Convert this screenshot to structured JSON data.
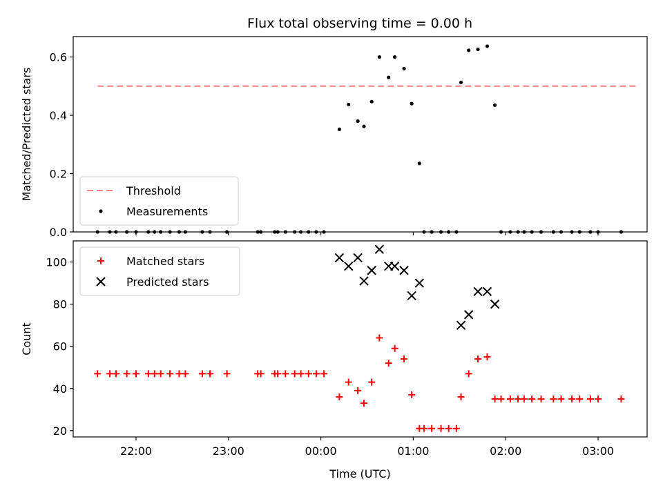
{
  "chart_data": [
    {
      "type": "scatter",
      "title": "Flux total observing time = 0.00 h",
      "xlabel": "",
      "ylabel": "Matched/Predicted stars",
      "ylim": [
        0,
        0.67
      ],
      "yticks": [
        "0.0",
        "0.2",
        "0.4",
        "0.6"
      ],
      "legend_position": "lower-left",
      "series": [
        {
          "name": "Threshold",
          "style": "dashed-line",
          "color": "#ff7f7f",
          "x": [
            "21:35",
            "03:25"
          ],
          "y": [
            0.5,
            0.5
          ]
        },
        {
          "name": "Measurements",
          "style": "dot",
          "color": "#000000",
          "x": [
            "21:35",
            "21:43",
            "21:47",
            "21:54",
            "22:00",
            "22:08",
            "22:12",
            "22:16",
            "22:22",
            "22:28",
            "22:32",
            "22:43",
            "22:48",
            "22:59",
            "23:19",
            "23:21",
            "23:30",
            "23:32",
            "23:37",
            "23:43",
            "23:47",
            "23:52",
            "23:57",
            "00:02",
            "00:12",
            "00:18",
            "00:24",
            "00:28",
            "00:33",
            "00:38",
            "00:44",
            "00:48",
            "00:54",
            "00:59",
            "01:04",
            "01:07",
            "01:12",
            "01:18",
            "01:23",
            "01:28",
            "01:31",
            "01:36",
            "01:42",
            "01:48",
            "01:53",
            "01:57",
            "02:03",
            "02:08",
            "02:12",
            "02:17",
            "02:23",
            "02:31",
            "02:36",
            "02:43",
            "02:48",
            "02:55",
            "03:00",
            "03:15"
          ],
          "y": [
            0,
            0,
            0,
            0,
            0,
            0,
            0,
            0,
            0,
            0,
            0,
            0,
            0,
            0,
            0,
            0,
            0,
            0,
            0,
            0,
            0,
            0,
            0,
            0,
            0.352,
            0.437,
            0.38,
            0.362,
            0.447,
            0.6,
            0.53,
            0.6,
            0.56,
            0.44,
            0.235,
            0,
            0,
            0,
            0,
            0,
            0.513,
            0.623,
            0.626,
            0.637,
            0.435,
            0,
            0,
            0,
            0,
            0,
            0,
            0,
            0,
            0,
            0,
            0,
            0,
            0
          ]
        }
      ]
    },
    {
      "type": "scatter",
      "title": "",
      "xlabel": "Time (UTC)",
      "ylabel": "Count",
      "ylim": [
        17,
        110
      ],
      "yticks": [
        "20",
        "40",
        "60",
        "80",
        "100"
      ],
      "xticks": [
        "22:00",
        "23:00",
        "00:00",
        "01:00",
        "02:00",
        "03:00"
      ],
      "legend_position": "upper-left",
      "series": [
        {
          "name": "Matched stars",
          "style": "plus",
          "color": "#ff0000",
          "x": [
            "21:35",
            "21:43",
            "21:47",
            "21:54",
            "22:00",
            "22:08",
            "22:12",
            "22:16",
            "22:22",
            "22:28",
            "22:32",
            "22:43",
            "22:48",
            "22:59",
            "23:19",
            "23:21",
            "23:30",
            "23:32",
            "23:37",
            "23:43",
            "23:47",
            "23:52",
            "23:57",
            "00:02",
            "00:12",
            "00:18",
            "00:24",
            "00:28",
            "00:33",
            "00:38",
            "00:44",
            "00:48",
            "00:54",
            "00:59",
            "01:04",
            "01:07",
            "01:12",
            "01:18",
            "01:23",
            "01:28",
            "01:31",
            "01:36",
            "01:42",
            "01:48",
            "01:53",
            "01:57",
            "02:03",
            "02:08",
            "02:12",
            "02:17",
            "02:23",
            "02:31",
            "02:36",
            "02:43",
            "02:48",
            "02:55",
            "03:00",
            "03:15"
          ],
          "y": [
            47,
            47,
            47,
            47,
            47,
            47,
            47,
            47,
            47,
            47,
            47,
            47,
            47,
            47,
            47,
            47,
            47,
            47,
            47,
            47,
            47,
            47,
            47,
            47,
            36,
            43,
            39,
            33,
            43,
            64,
            52,
            59,
            54,
            37,
            21,
            21,
            21,
            21,
            21,
            21,
            36,
            47,
            54,
            55,
            35,
            35,
            35,
            35,
            35,
            35,
            35,
            35,
            35,
            35,
            35,
            35,
            35,
            35
          ]
        },
        {
          "name": "Predicted stars",
          "style": "x",
          "color": "#000000",
          "x": [
            "00:12",
            "00:18",
            "00:24",
            "00:28",
            "00:33",
            "00:38",
            "00:44",
            "00:48",
            "00:54",
            "00:59",
            "01:04",
            "01:31",
            "01:36",
            "01:42",
            "01:48",
            "01:53"
          ],
          "y": [
            102,
            98,
            102,
            91,
            96,
            106,
            98,
            98,
            96,
            84,
            90,
            70,
            75,
            86,
            86,
            80
          ]
        }
      ]
    }
  ]
}
